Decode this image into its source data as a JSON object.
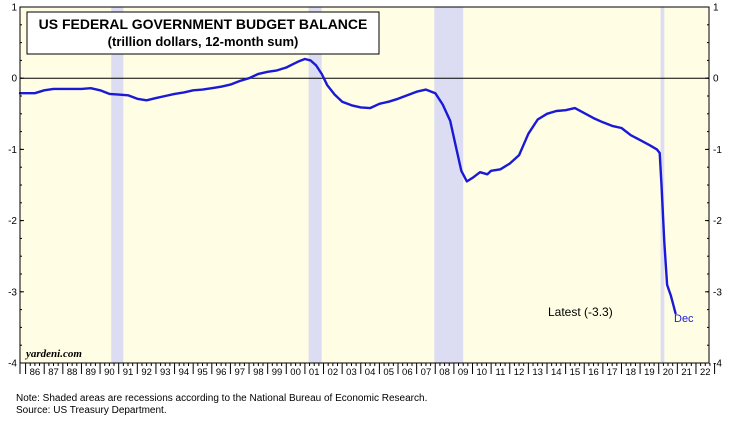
{
  "chart_data": {
    "type": "line",
    "title": "US FEDERAL GOVERNMENT BUDGET BALANCE",
    "subtitle": "(trillion dollars, 12-month sum)",
    "ylim": [
      -4,
      1
    ],
    "yticks": [
      "1",
      "0",
      "-1",
      "-2",
      "-3",
      "-4"
    ],
    "ytick_values": [
      1,
      0,
      -1,
      -2,
      -3,
      -4
    ],
    "xlim": [
      1985.7,
      2022.7
    ],
    "x_tick_labels": [
      "86",
      "87",
      "88",
      "89",
      "90",
      "91",
      "92",
      "93",
      "94",
      "95",
      "96",
      "97",
      "98",
      "99",
      "00",
      "01",
      "02",
      "03",
      "04",
      "05",
      "06",
      "07",
      "08",
      "09",
      "10",
      "11",
      "12",
      "13",
      "14",
      "15",
      "16",
      "17",
      "18",
      "19",
      "20",
      "21",
      "22"
    ],
    "recessions": [
      {
        "start": 1990.6,
        "end": 1991.25
      },
      {
        "start": 2001.2,
        "end": 2001.9
      },
      {
        "start": 2007.95,
        "end": 2009.5
      },
      {
        "start": 2020.1,
        "end": 2020.3
      }
    ],
    "series": [
      {
        "name": "Budget balance",
        "color": "#1a1ad6",
        "points": [
          [
            1985.7,
            -0.21
          ],
          [
            1986.5,
            -0.21
          ],
          [
            1987.0,
            -0.17
          ],
          [
            1987.5,
            -0.15
          ],
          [
            1988.0,
            -0.15
          ],
          [
            1988.5,
            -0.15
          ],
          [
            1989.0,
            -0.15
          ],
          [
            1989.5,
            -0.14
          ],
          [
            1990.0,
            -0.17
          ],
          [
            1990.5,
            -0.22
          ],
          [
            1991.0,
            -0.23
          ],
          [
            1991.5,
            -0.24
          ],
          [
            1992.0,
            -0.29
          ],
          [
            1992.5,
            -0.31
          ],
          [
            1993.0,
            -0.28
          ],
          [
            1993.5,
            -0.25
          ],
          [
            1994.0,
            -0.22
          ],
          [
            1994.5,
            -0.2
          ],
          [
            1995.0,
            -0.17
          ],
          [
            1995.5,
            -0.16
          ],
          [
            1996.0,
            -0.14
          ],
          [
            1996.5,
            -0.12
          ],
          [
            1997.0,
            -0.09
          ],
          [
            1997.5,
            -0.04
          ],
          [
            1998.0,
            0.0
          ],
          [
            1998.5,
            0.06
          ],
          [
            1999.0,
            0.09
          ],
          [
            1999.5,
            0.11
          ],
          [
            2000.0,
            0.15
          ],
          [
            2000.3,
            0.19
          ],
          [
            2000.7,
            0.24
          ],
          [
            2001.0,
            0.27
          ],
          [
            2001.3,
            0.25
          ],
          [
            2001.6,
            0.18
          ],
          [
            2001.9,
            0.06
          ],
          [
            2002.2,
            -0.1
          ],
          [
            2002.6,
            -0.23
          ],
          [
            2003.0,
            -0.33
          ],
          [
            2003.5,
            -0.38
          ],
          [
            2004.0,
            -0.41
          ],
          [
            2004.5,
            -0.42
          ],
          [
            2005.0,
            -0.36
          ],
          [
            2005.5,
            -0.33
          ],
          [
            2006.0,
            -0.29
          ],
          [
            2006.5,
            -0.24
          ],
          [
            2007.0,
            -0.19
          ],
          [
            2007.5,
            -0.16
          ],
          [
            2008.0,
            -0.21
          ],
          [
            2008.4,
            -0.37
          ],
          [
            2008.8,
            -0.6
          ],
          [
            2009.1,
            -0.95
          ],
          [
            2009.4,
            -1.3
          ],
          [
            2009.7,
            -1.45
          ],
          [
            2010.0,
            -1.4
          ],
          [
            2010.4,
            -1.32
          ],
          [
            2010.8,
            -1.35
          ],
          [
            2011.0,
            -1.3
          ],
          [
            2011.5,
            -1.28
          ],
          [
            2012.0,
            -1.2
          ],
          [
            2012.5,
            -1.08
          ],
          [
            2013.0,
            -0.78
          ],
          [
            2013.5,
            -0.58
          ],
          [
            2014.0,
            -0.5
          ],
          [
            2014.5,
            -0.46
          ],
          [
            2015.0,
            -0.45
          ],
          [
            2015.5,
            -0.42
          ],
          [
            2016.0,
            -0.49
          ],
          [
            2016.5,
            -0.56
          ],
          [
            2017.0,
            -0.62
          ],
          [
            2017.5,
            -0.67
          ],
          [
            2018.0,
            -0.7
          ],
          [
            2018.5,
            -0.8
          ],
          [
            2019.0,
            -0.87
          ],
          [
            2019.5,
            -0.94
          ],
          [
            2019.9,
            -1.0
          ],
          [
            2020.05,
            -1.05
          ],
          [
            2020.15,
            -1.5
          ],
          [
            2020.3,
            -2.3
          ],
          [
            2020.45,
            -2.9
          ],
          [
            2020.55,
            -2.98
          ],
          [
            2020.65,
            -3.05
          ],
          [
            2020.75,
            -3.15
          ],
          [
            2020.9,
            -3.3
          ]
        ]
      }
    ],
    "annotations": {
      "latest": "Latest (-3.3)",
      "latest_month": "Dec",
      "brand": "yardeni.com"
    }
  },
  "notes": {
    "note": "Note: Shaded areas are recessions according to the National Bureau of Economic Research.",
    "source": "Source: US Treasury Department."
  },
  "colors": {
    "plot_bg": "#fffde3",
    "recession": "#dcdcf2",
    "line": "#1a1ad6"
  }
}
